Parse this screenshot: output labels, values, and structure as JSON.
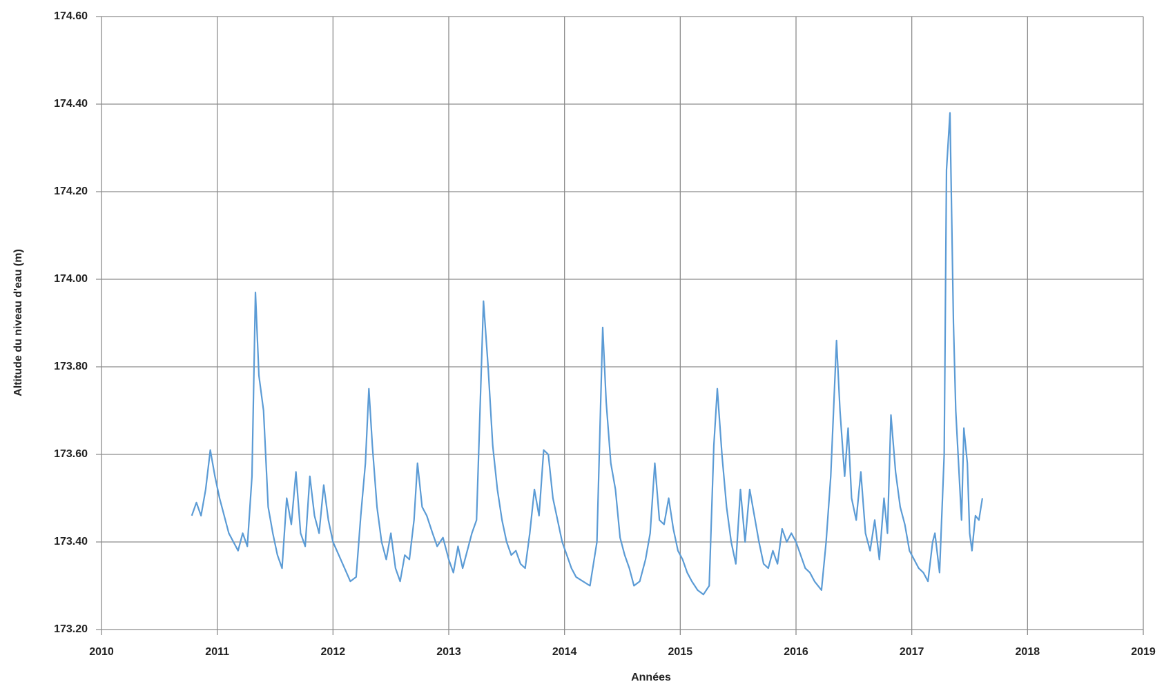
{
  "chart_data": {
    "type": "line",
    "x_label": "Années",
    "y_label": "Altitude du niveau d'eau (m)",
    "xlim": [
      2010,
      2019
    ],
    "xticks": [
      2010,
      2011,
      2012,
      2013,
      2014,
      2015,
      2016,
      2017,
      2018,
      2019
    ],
    "ylim": [
      173.2,
      174.6
    ],
    "yticks": [
      {
        "value": 173.2,
        "label": "173.20"
      },
      {
        "value": 173.4,
        "label": "173.40"
      },
      {
        "value": 173.6,
        "label": "173.60"
      },
      {
        "value": 173.8,
        "label": "173.80"
      },
      {
        "value": 174.0,
        "label": "174.00"
      },
      {
        "value": 174.2,
        "label": "174.20"
      },
      {
        "value": 174.4,
        "label": "174.40"
      },
      {
        "value": 174.6,
        "label": "174.60"
      }
    ],
    "grid": true,
    "x": [
      2010.78,
      2010.82,
      2010.86,
      2010.9,
      2010.94,
      2010.98,
      2011.02,
      2011.06,
      2011.1,
      2011.14,
      2011.18,
      2011.22,
      2011.26,
      2011.3,
      2011.33,
      2011.36,
      2011.4,
      2011.44,
      2011.48,
      2011.52,
      2011.56,
      2011.6,
      2011.64,
      2011.68,
      2011.72,
      2011.76,
      2011.8,
      2011.84,
      2011.88,
      2011.92,
      2011.96,
      2012.0,
      2012.05,
      2012.1,
      2012.15,
      2012.2,
      2012.24,
      2012.28,
      2012.31,
      2012.34,
      2012.38,
      2012.42,
      2012.46,
      2012.5,
      2012.54,
      2012.58,
      2012.62,
      2012.66,
      2012.7,
      2012.73,
      2012.77,
      2012.81,
      2012.86,
      2012.9,
      2012.95,
      2013.0,
      2013.04,
      2013.08,
      2013.12,
      2013.16,
      2013.2,
      2013.24,
      2013.27,
      2013.3,
      2013.34,
      2013.38,
      2013.42,
      2013.46,
      2013.5,
      2013.54,
      2013.58,
      2013.62,
      2013.66,
      2013.7,
      2013.74,
      2013.78,
      2013.82,
      2013.86,
      2013.9,
      2013.94,
      2013.98,
      2014.02,
      2014.06,
      2014.1,
      2014.16,
      2014.22,
      2014.28,
      2014.33,
      2014.36,
      2014.4,
      2014.44,
      2014.48,
      2014.52,
      2014.56,
      2014.6,
      2014.65,
      2014.7,
      2014.74,
      2014.78,
      2014.82,
      2014.86,
      2014.9,
      2014.94,
      2014.98,
      2015.02,
      2015.06,
      2015.1,
      2015.15,
      2015.2,
      2015.25,
      2015.29,
      2015.32,
      2015.36,
      2015.4,
      2015.44,
      2015.48,
      2015.52,
      2015.56,
      2015.6,
      2015.64,
      2015.68,
      2015.72,
      2015.76,
      2015.8,
      2015.84,
      2015.88,
      2015.92,
      2015.96,
      2016.0,
      2016.04,
      2016.08,
      2016.12,
      2016.16,
      2016.22,
      2016.26,
      2016.3,
      2016.35,
      2016.38,
      2016.42,
      2016.45,
      2016.48,
      2016.52,
      2016.56,
      2016.6,
      2016.64,
      2016.68,
      2016.72,
      2016.76,
      2016.79,
      2016.82,
      2016.86,
      2016.9,
      2016.94,
      2016.98,
      2017.02,
      2017.06,
      2017.1,
      2017.14,
      2017.18,
      2017.2,
      2017.24,
      2017.28,
      2017.3,
      2017.33,
      2017.36,
      2017.38,
      2017.4,
      2017.43,
      2017.45,
      2017.48,
      2017.5,
      2017.52,
      2017.55,
      2017.58,
      2017.61
    ],
    "series": [
      {
        "name": "Altitude du niveau d'eau",
        "color": "#5b9bd5",
        "values": [
          173.46,
          173.49,
          173.46,
          173.52,
          173.61,
          173.55,
          173.5,
          173.46,
          173.42,
          173.4,
          173.38,
          173.42,
          173.39,
          173.55,
          173.97,
          173.78,
          173.7,
          173.48,
          173.42,
          173.37,
          173.34,
          173.5,
          173.44,
          173.56,
          173.42,
          173.39,
          173.55,
          173.46,
          173.42,
          173.53,
          173.45,
          173.4,
          173.37,
          173.34,
          173.31,
          173.32,
          173.46,
          173.58,
          173.75,
          173.62,
          173.48,
          173.4,
          173.36,
          173.42,
          173.34,
          173.31,
          173.37,
          173.36,
          173.45,
          173.58,
          173.48,
          173.46,
          173.42,
          173.39,
          173.41,
          173.36,
          173.33,
          173.39,
          173.34,
          173.38,
          173.42,
          173.45,
          173.7,
          173.95,
          173.8,
          173.62,
          173.52,
          173.45,
          173.4,
          173.37,
          173.38,
          173.35,
          173.34,
          173.42,
          173.52,
          173.46,
          173.61,
          173.6,
          173.5,
          173.45,
          173.4,
          173.37,
          173.34,
          173.32,
          173.31,
          173.3,
          173.4,
          173.89,
          173.72,
          173.58,
          173.52,
          173.41,
          173.37,
          173.34,
          173.3,
          173.31,
          173.36,
          173.42,
          173.58,
          173.45,
          173.44,
          173.5,
          173.43,
          173.38,
          173.36,
          173.33,
          173.31,
          173.29,
          173.28,
          173.3,
          173.62,
          173.75,
          173.6,
          173.48,
          173.4,
          173.35,
          173.52,
          173.4,
          173.52,
          173.46,
          173.4,
          173.35,
          173.34,
          173.38,
          173.35,
          173.43,
          173.4,
          173.42,
          173.4,
          173.37,
          173.34,
          173.33,
          173.31,
          173.29,
          173.4,
          173.55,
          173.86,
          173.7,
          173.55,
          173.66,
          173.5,
          173.45,
          173.56,
          173.42,
          173.38,
          173.45,
          173.36,
          173.5,
          173.42,
          173.69,
          173.56,
          173.48,
          173.44,
          173.38,
          173.36,
          173.34,
          173.33,
          173.31,
          173.4,
          173.42,
          173.33,
          173.6,
          174.25,
          174.38,
          173.9,
          173.7,
          173.6,
          173.45,
          173.66,
          173.58,
          173.42,
          173.38,
          173.46,
          173.45,
          173.5
        ]
      }
    ]
  }
}
